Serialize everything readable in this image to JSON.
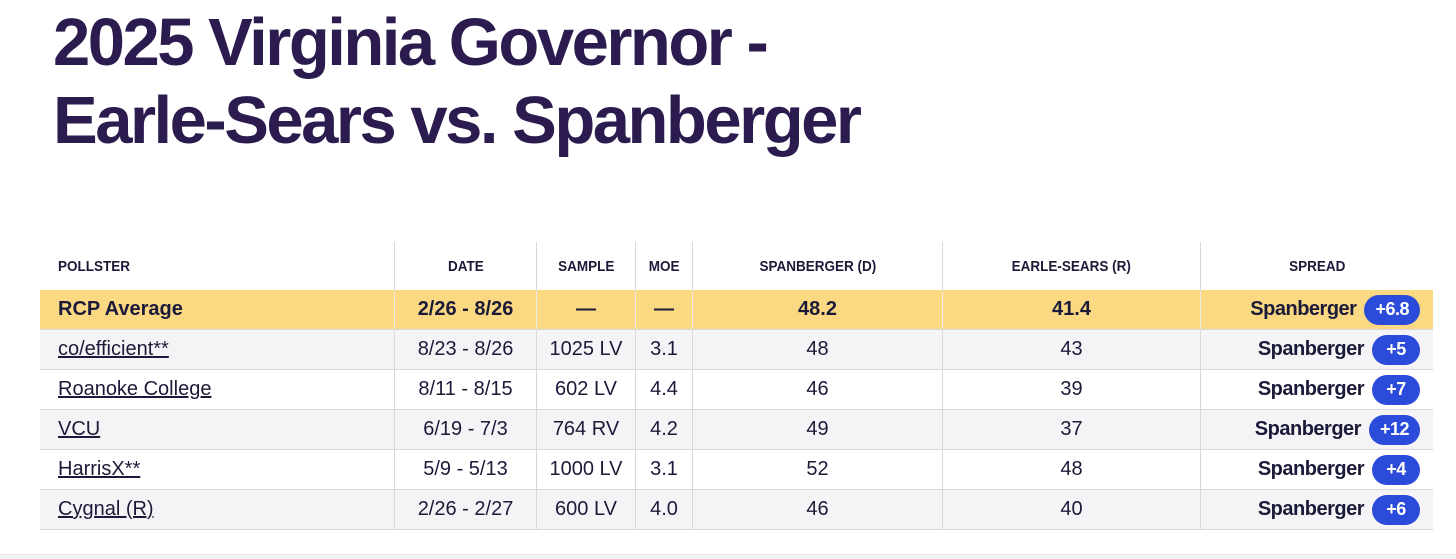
{
  "title": {
    "line1": "2025 Virginia Governor -",
    "line2": "Earle-Sears vs. Spanberger"
  },
  "table": {
    "columns": [
      "POLLSTER",
      "DATE",
      "SAMPLE",
      "MOE",
      "SPANBERGER (D)",
      "EARLE-SEARS (R)",
      "SPREAD"
    ],
    "average_row": {
      "pollster": "RCP Average",
      "date": "2/26 - 8/26",
      "sample": "—",
      "moe": "—",
      "spanberger": "48.2",
      "earle_sears": "41.4",
      "spread_winner": "Spanberger",
      "spread_margin": "+6.8"
    },
    "rows": [
      {
        "pollster": "co/efficient**",
        "date": "8/23 - 8/26",
        "sample": "1025 LV",
        "moe": "3.1",
        "spanberger": "48",
        "earle_sears": "43",
        "spread_winner": "Spanberger",
        "spread_margin": "+5"
      },
      {
        "pollster": "Roanoke College",
        "date": "8/11 - 8/15",
        "sample": "602 LV",
        "moe": "4.4",
        "spanberger": "46",
        "earle_sears": "39",
        "spread_winner": "Spanberger",
        "spread_margin": "+7"
      },
      {
        "pollster": "VCU",
        "date": "6/19 - 7/3",
        "sample": "764 RV",
        "moe": "4.2",
        "spanberger": "49",
        "earle_sears": "37",
        "spread_winner": "Spanberger",
        "spread_margin": "+12"
      },
      {
        "pollster": "HarrisX**",
        "date": "5/9 - 5/13",
        "sample": "1000 LV",
        "moe": "3.1",
        "spanberger": "52",
        "earle_sears": "48",
        "spread_winner": "Spanberger",
        "spread_margin": "+4"
      },
      {
        "pollster": "Cygnal (R)",
        "date": "2/26 - 2/27",
        "sample": "600 LV",
        "moe": "4.0",
        "spanberger": "46",
        "earle_sears": "40",
        "spread_winner": "Spanberger",
        "spread_margin": "+6"
      }
    ]
  },
  "colors": {
    "title_purple": "#2b1b4e",
    "navy": "#1b1b39",
    "highlight_yellow": "#fbd983",
    "accent_blue": "#2b4bdb"
  }
}
